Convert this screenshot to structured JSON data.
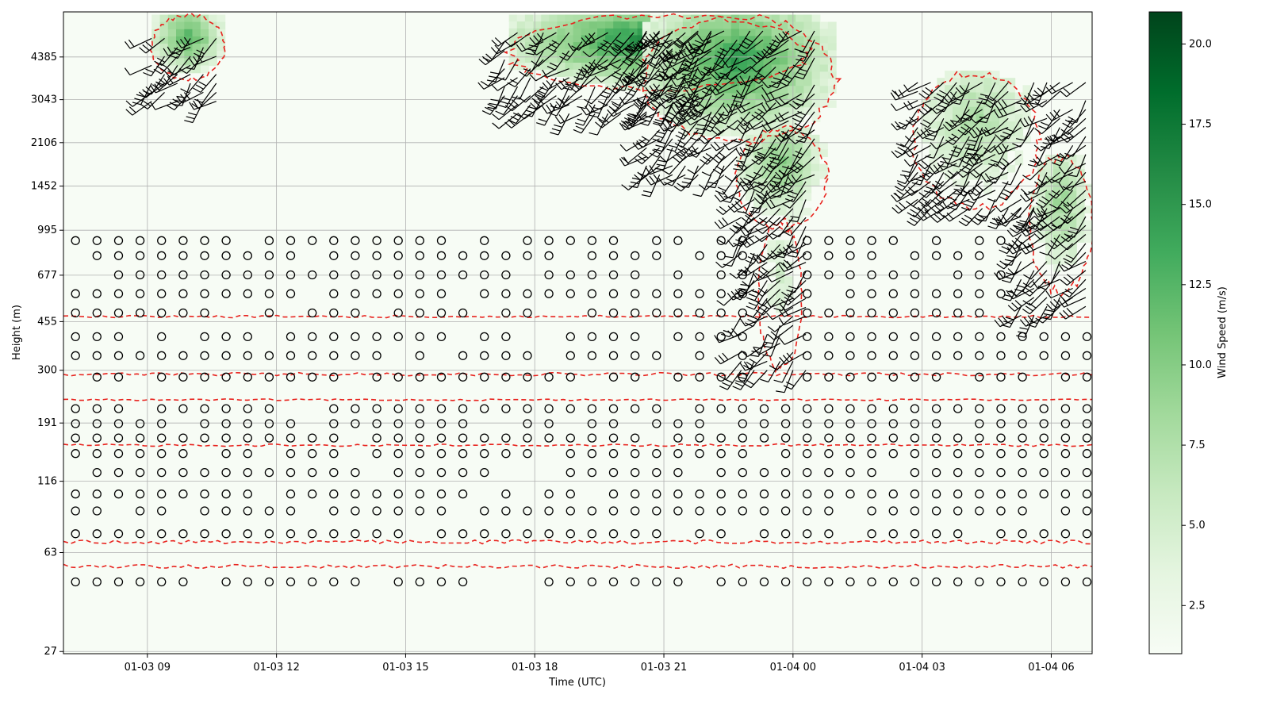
{
  "chart_data": {
    "type": "heatmap",
    "title": "",
    "xlabel": "Time (UTC)",
    "ylabel": "Height (m)",
    "x_ticks": [
      "01-03 09",
      "01-03 12",
      "01-03 15",
      "01-03 18",
      "01-03 21",
      "01-04 00",
      "01-04 03",
      "01-04 06"
    ],
    "x_tick_hours": [
      9,
      12,
      15,
      18,
      21,
      24,
      27,
      30
    ],
    "x_range_hours": [
      7.05,
      30.95
    ],
    "y_scale": "log",
    "y_ticks": [
      "27",
      "63",
      "116",
      "191",
      "300",
      "455",
      "677",
      "995",
      "1452",
      "2106",
      "3043",
      "4385"
    ],
    "y_tick_values": [
      27,
      63,
      116,
      191,
      300,
      455,
      677,
      995,
      1452,
      2106,
      3043,
      4385
    ],
    "y_range": [
      26.5,
      6450
    ],
    "grid": true,
    "colorbar": {
      "label": "Wind Speed (m/s)",
      "ticks": [
        "2.5",
        "5.0",
        "7.5",
        "10.0",
        "12.5",
        "15.0",
        "17.5",
        "20.0"
      ],
      "tick_values": [
        2.5,
        5.0,
        7.5,
        10.0,
        12.5,
        15.0,
        17.5,
        20.0
      ],
      "range": [
        1.0,
        21.0
      ],
      "colormap": "Greens"
    },
    "speed_regions": [
      {
        "t": [
          9.1,
          10.8
        ],
        "h": [
          3600,
          6300
        ],
        "peak": 13
      },
      {
        "t": [
          17.4,
          24.3
        ],
        "h": [
          3300,
          6300
        ],
        "peak": 17
      },
      {
        "t": [
          20.5,
          25.0
        ],
        "h": [
          2100,
          6300
        ],
        "peak": 15
      },
      {
        "t": [
          22.7,
          24.8
        ],
        "h": [
          1000,
          2400
        ],
        "peak": 10
      },
      {
        "t": [
          23.2,
          24.2
        ],
        "h": [
          300,
          1100
        ],
        "peak": 5
      },
      {
        "t": [
          26.8,
          29.7
        ],
        "h": [
          1200,
          3900
        ],
        "peak": 8
      },
      {
        "t": [
          29.5,
          30.95
        ],
        "h": [
          580,
          1900
        ],
        "peak": 9
      }
    ],
    "barb_regions": [
      {
        "t": [
          9.1,
          10.9
        ],
        "h": [
          3000,
          5200
        ]
      },
      {
        "t": [
          17.3,
          22.2
        ],
        "h": [
          2700,
          5600
        ]
      },
      {
        "t": [
          20.6,
          24.8
        ],
        "h": [
          1600,
          5600
        ]
      },
      {
        "t": [
          22.8,
          24.4
        ],
        "h": [
          300,
          1600
        ]
      },
      {
        "t": [
          26.9,
          30.9
        ],
        "h": [
          1200,
          3800
        ]
      },
      {
        "t": [
          29.3,
          30.9
        ],
        "h": [
          480,
          1300
        ]
      }
    ],
    "calm_levels": [
      49,
      74,
      90,
      104,
      125,
      147,
      168,
      190,
      216,
      283,
      340,
      400,
      490,
      578,
      679,
      800,
      910
    ],
    "calm_exclude": [
      {
        "t": [
          23.0,
          24.2
        ],
        "h": [
          280,
          1000
        ]
      },
      {
        "t": [
          29.0,
          31.0
        ],
        "h": [
          440,
          1000
        ]
      }
    ],
    "threshold_contour_style": "red-dashed"
  }
}
